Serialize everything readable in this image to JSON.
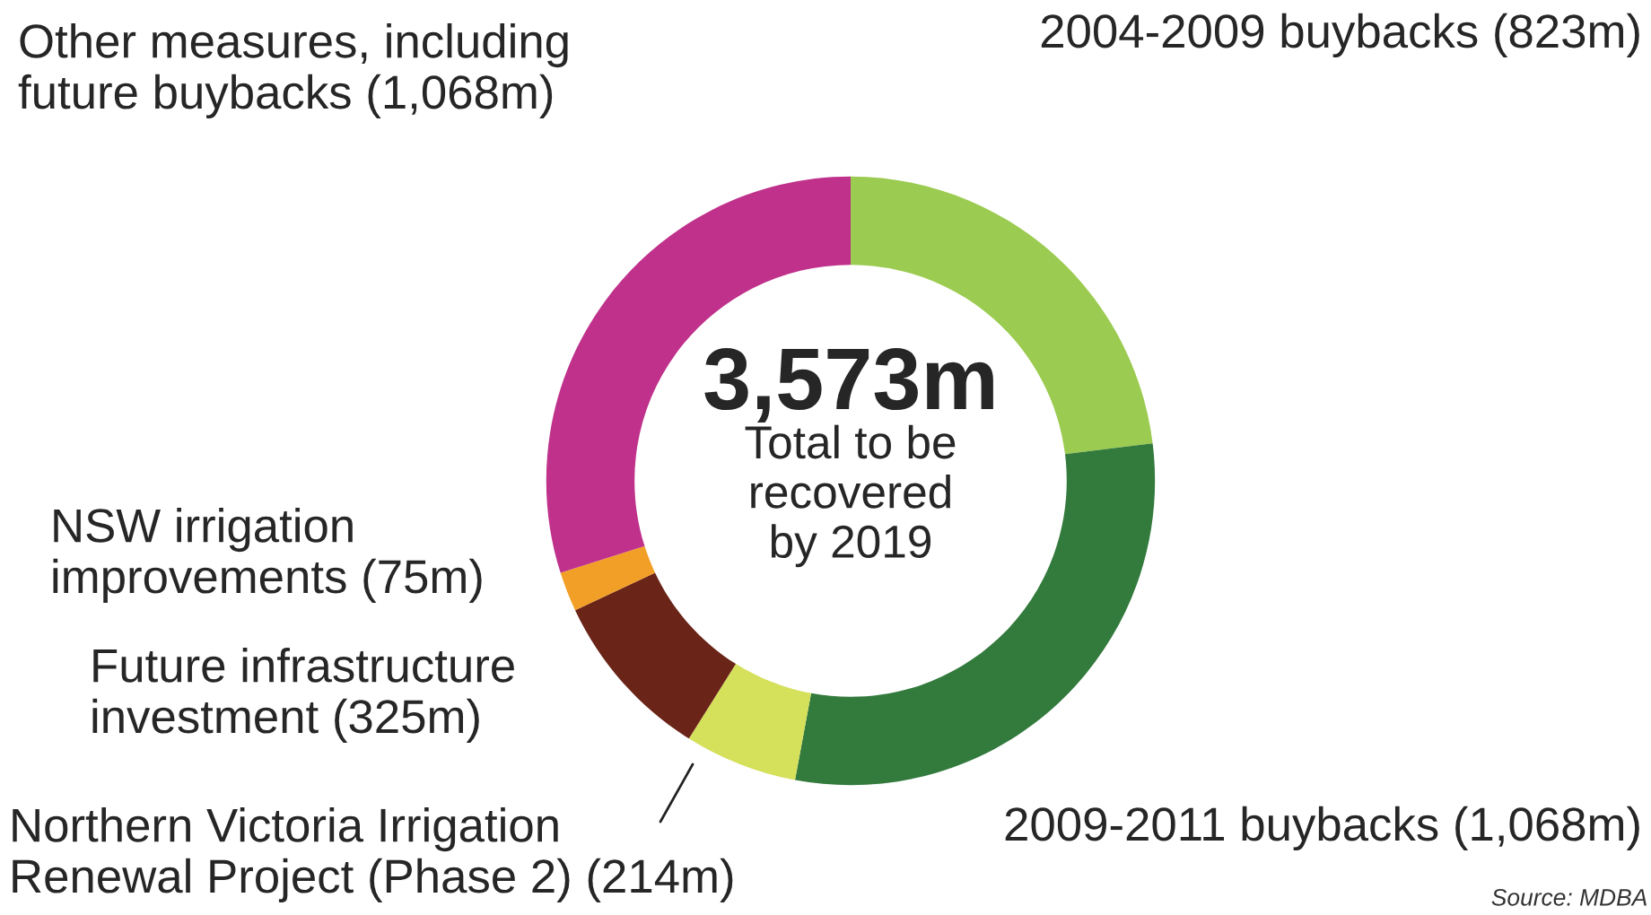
{
  "chart_data": {
    "type": "donut",
    "categories": [
      "2004-2009 buybacks (823m)",
      "2009-2011 buybacks (1,068m)",
      "Northern Victoria Irrigation\nRenewal Project (Phase 2) (214m)",
      "Future infrastructure\ninvestment (325m)",
      "NSW irrigation\nimprovements (75m)",
      "Other measures, including\nfuture buybacks (1,068m)"
    ],
    "values": [
      823,
      1068,
      214,
      325,
      75,
      1068
    ],
    "colors": [
      "#9bcb50",
      "#337a3d",
      "#d5e05b",
      "#6a2418",
      "#f19f26",
      "#bf318b"
    ],
    "annotations": [
      "3,573m",
      "Total to be\nrecovered\nby 2019",
      "Source: MDBA"
    ]
  }
}
